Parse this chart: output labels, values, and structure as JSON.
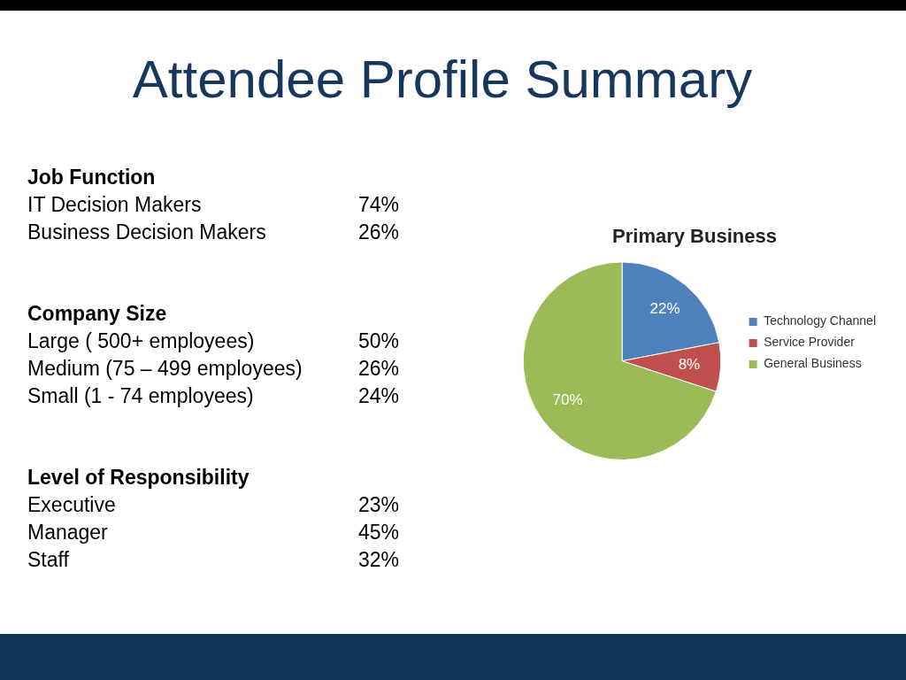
{
  "chart_data": [
    {
      "type": "other",
      "title": "Attendee Profile Summary"
    },
    {
      "type": "other",
      "title": "Job Function",
      "annotations": [
        "IT Decision Makers",
        "74%",
        "Business Decision Makers",
        "26%"
      ]
    },
    {
      "type": "other",
      "title": "Company Size",
      "annotations": [
        "Large ( 500+ employees)",
        "50%",
        "Medium (75 – 499 employees)",
        "26%",
        "Small (1 - 74 employees)",
        "24%"
      ]
    },
    {
      "type": "other",
      "title": "Level of Responsibility",
      "annotations": [
        "Executive",
        "23%",
        "Manager",
        "45%",
        "Staff",
        "32%"
      ]
    },
    {
      "type": "pie",
      "title": "Primary Business",
      "categories": [
        "Technology Channel",
        "Service Provider",
        "General Business"
      ],
      "values": [
        22,
        8,
        70
      ],
      "colors": [
        "#4f81bd",
        "#c0504d",
        "#9bbb59"
      ],
      "value_labels": [
        "22%",
        "8%",
        "70%"
      ],
      "legend": "right"
    }
  ]
}
